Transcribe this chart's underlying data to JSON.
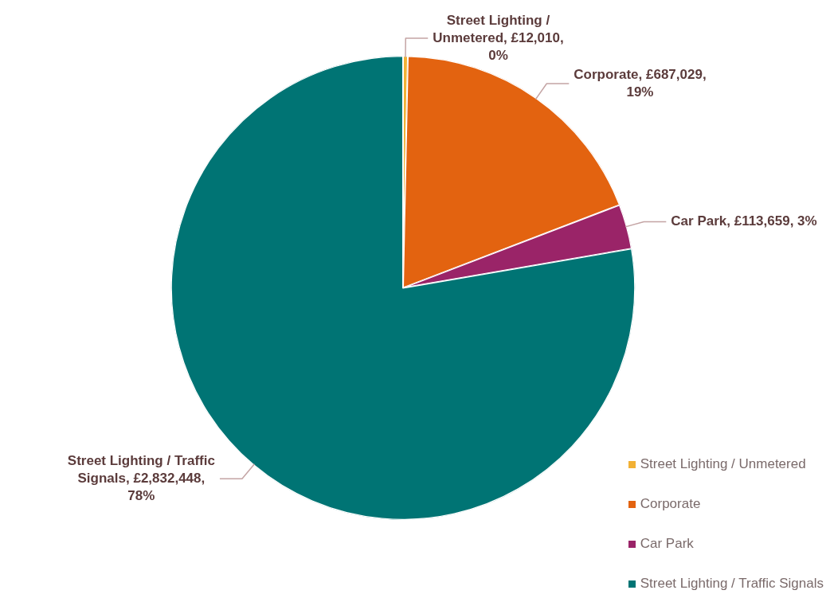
{
  "chart_data": {
    "type": "pie",
    "categories": [
      "Street Lighting / Unmetered",
      "Corporate",
      "Car Park",
      "Street Lighting / Traffic Signals"
    ],
    "values": [
      12010,
      687029,
      113659,
      2832448
    ],
    "value_labels": [
      ", £12,010, 0%",
      ", £687,029, 19%",
      ", £113,659, 3%",
      ", £2,832,448, 78%"
    ],
    "colors": [
      "#f2b134",
      "#e36310",
      "#9a2468",
      "#007474"
    ],
    "legend": "bottom right"
  }
}
